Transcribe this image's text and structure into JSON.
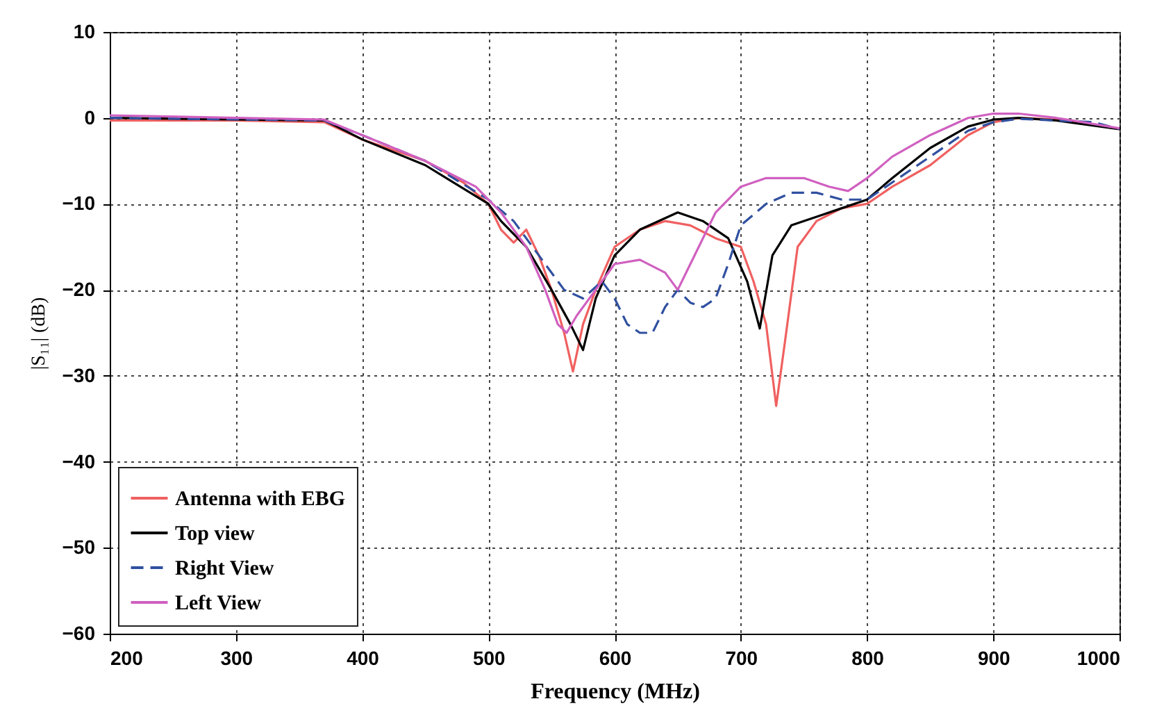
{
  "chart_data": {
    "type": "line",
    "xlabel": "Frequency (MHz)",
    "ylabel": "|S₁₁| (dB)",
    "xlim": [
      200,
      1000
    ],
    "xticks": [
      200,
      300,
      400,
      500,
      600,
      700,
      800,
      900,
      1000
    ],
    "ylim": [
      -60,
      10
    ],
    "yticks": [
      -60,
      -50,
      -40,
      -30,
      -20,
      -10,
      0,
      10
    ],
    "grid": true,
    "legend": "bottom left",
    "marker": "none",
    "series": [
      {
        "name": "Antenna with EBG",
        "color": "#f06060",
        "line_style": "solid",
        "x": [
          200,
          300,
          370,
          400,
          450,
          480,
          500,
          510,
          520,
          530,
          540,
          550,
          560,
          567,
          575,
          585,
          600,
          620,
          640,
          660,
          680,
          700,
          710,
          720,
          728,
          735,
          745,
          760,
          780,
          800,
          820,
          850,
          880,
          900,
          920,
          950,
          980,
          1000
        ],
        "values": [
          -0.3,
          -0.3,
          -0.5,
          -2.5,
          -5,
          -7.5,
          -10,
          -13,
          -14.5,
          -13,
          -16,
          -20,
          -25,
          -29.5,
          -24,
          -20,
          -15,
          -13,
          -12,
          -12.5,
          -14,
          -15,
          -19,
          -24,
          -33.5,
          -26,
          -15,
          -12,
          -10.5,
          -10,
          -8,
          -5.5,
          -2,
          -0.5,
          0,
          -0.2,
          -0.8,
          -1.3
        ]
      },
      {
        "name": "Top view",
        "color": "#000000",
        "line_style": "solid",
        "x": [
          200,
          370,
          380,
          400,
          450,
          500,
          510,
          530,
          550,
          565,
          575,
          585,
          600,
          620,
          650,
          670,
          690,
          705,
          715,
          725,
          740,
          760,
          780,
          800,
          820,
          850,
          880,
          900,
          920,
          950,
          1000
        ],
        "values": [
          0,
          -0.3,
          -1,
          -2.5,
          -5.5,
          -10,
          -12,
          -15,
          -20,
          -24,
          -27,
          -21,
          -16,
          -13,
          -11,
          -12,
          -14,
          -19,
          -24.5,
          -16,
          -12.5,
          -11.5,
          -10.5,
          -9.5,
          -7,
          -3.5,
          -1,
          -0.2,
          0,
          -0.3,
          -1.3
        ]
      },
      {
        "name": "Right View",
        "color": "#3050a0",
        "line_style": "dashed",
        "x": [
          200,
          370,
          400,
          450,
          500,
          520,
          540,
          560,
          575,
          590,
          600,
          610,
          620,
          630,
          640,
          650,
          660,
          670,
          680,
          690,
          700,
          720,
          740,
          760,
          780,
          800,
          820,
          850,
          880,
          900,
          920,
          950,
          980,
          1000
        ],
        "values": [
          0,
          -0.3,
          -2,
          -5,
          -9.5,
          -12,
          -16,
          -20,
          -21,
          -19,
          -21,
          -24,
          -25,
          -25,
          -22,
          -20,
          -21.5,
          -22,
          -21,
          -17,
          -12.5,
          -10,
          -8.7,
          -8.7,
          -9.5,
          -9.5,
          -7.5,
          -4.5,
          -1.5,
          -0.5,
          -0.1,
          -0.3,
          -0.5,
          -1.3
        ]
      },
      {
        "name": "Left View",
        "color": "#d060c0",
        "line_style": "solid",
        "x": [
          200,
          370,
          400,
          450,
          490,
          510,
          530,
          545,
          555,
          562,
          570,
          585,
          600,
          620,
          640,
          650,
          660,
          680,
          700,
          720,
          750,
          770,
          785,
          800,
          820,
          850,
          880,
          900,
          920,
          950,
          1000
        ],
        "values": [
          0.3,
          -0.2,
          -2,
          -5,
          -8,
          -11,
          -15,
          -20,
          -24,
          -25,
          -23,
          -20,
          -17,
          -16.5,
          -18,
          -20,
          -17,
          -11,
          -8,
          -7,
          -7,
          -8,
          -8.5,
          -7,
          -4.5,
          -2,
          0,
          0.5,
          0.5,
          0,
          -1.2
        ]
      }
    ]
  }
}
